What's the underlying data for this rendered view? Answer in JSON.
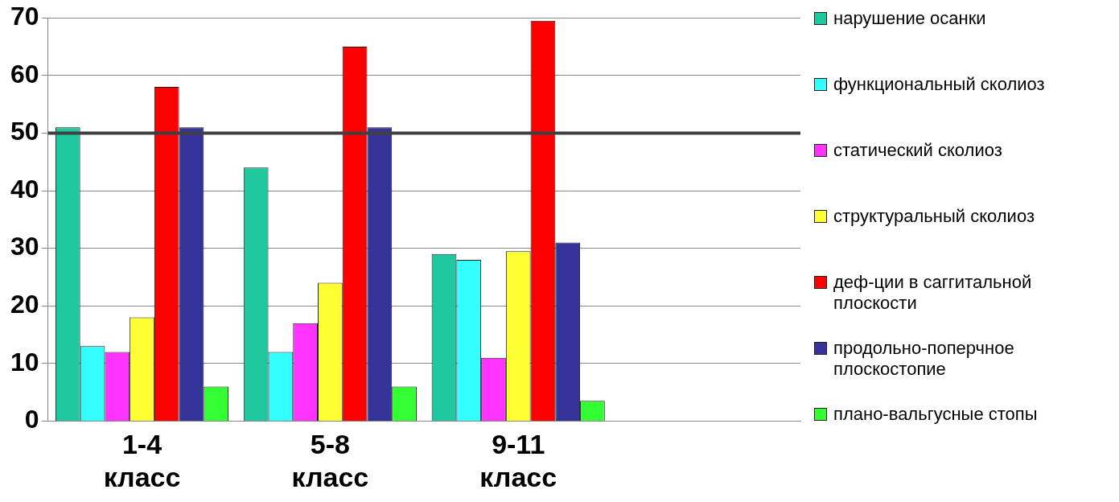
{
  "chart_data": {
    "type": "bar",
    "categories": [
      "1-4 класс",
      "5-8 класс",
      "9-11 класс",
      null
    ],
    "series": [
      {
        "name": "нарушение осанки",
        "color": "#20c8a0",
        "values": [
          51,
          44,
          29,
          null
        ]
      },
      {
        "name": "функциональный сколиоз",
        "color": "#33ffff",
        "values": [
          13,
          12,
          28,
          null
        ]
      },
      {
        "name": "статический сколиоз",
        "color": "#ff33ff",
        "values": [
          12,
          17,
          11,
          null
        ]
      },
      {
        "name": "структуральный сколиоз",
        "color": "#ffff33",
        "values": [
          18,
          24,
          29.5,
          null
        ]
      },
      {
        "name": "деф-ции в саггитальной плоскости",
        "color": "#ff0000",
        "values": [
          58,
          65,
          69.5,
          null
        ]
      },
      {
        "name": "продольно-поперчное плоскостопие",
        "color": "#333399",
        "values": [
          51,
          51,
          31,
          null
        ]
      },
      {
        "name": "плано-вальгусные стопы",
        "color": "#33ff33",
        "values": [
          6,
          6,
          3.5,
          null
        ]
      }
    ],
    "ylim": [
      0,
      70
    ],
    "yticks": [
      0,
      10,
      20,
      30,
      40,
      50,
      60,
      70
    ],
    "grid": "y",
    "legend": "right",
    "ref_lines": [
      {
        "axis": "y",
        "value": 50,
        "color": "#404040"
      }
    ]
  }
}
